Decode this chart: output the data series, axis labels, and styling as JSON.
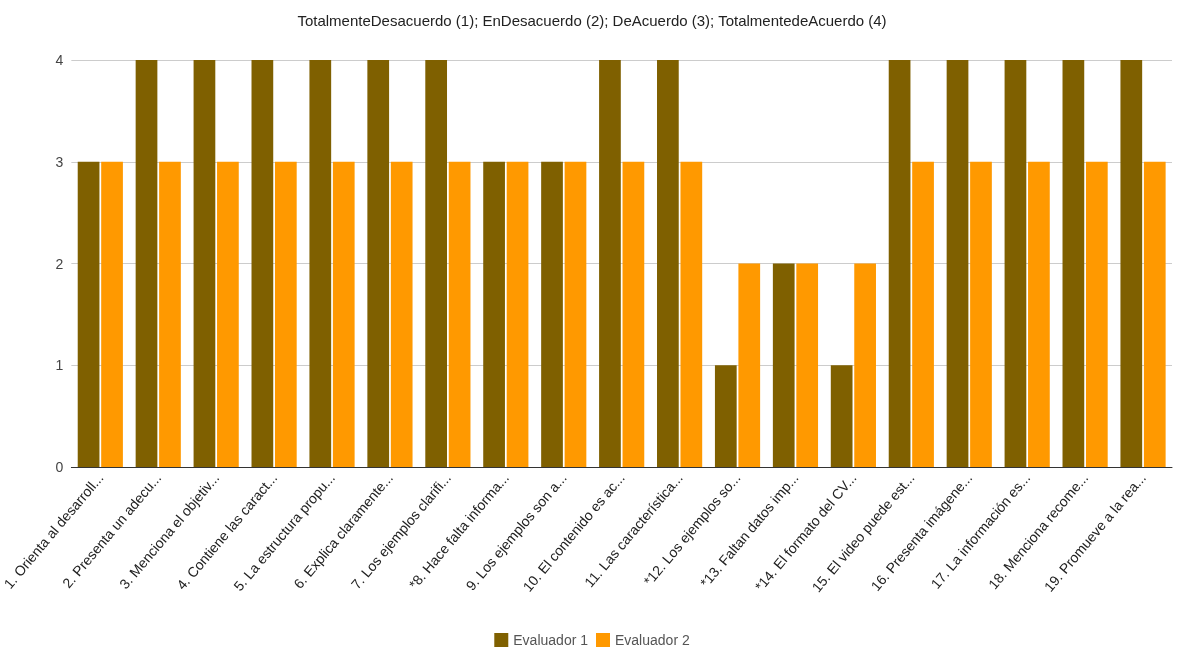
{
  "chart_data": {
    "type": "bar",
    "title": "TotalmenteDesacuerdo (1); EnDesacuerdo (2); DeAcuerdo (3); TotalmentedeAcuerdo (4)",
    "categories": [
      "1. Orienta al desarroll...",
      "2. Presenta un adecu...",
      "3. Menciona el objetiv...",
      "4. Contiene las caract...",
      "5. La estructura propu...",
      "6. Explica claramente...",
      "7. Los ejemplos clarifi...",
      "*8. Hace falta informa...",
      "9. Los ejemplos son a...",
      "10. El contenido es ac...",
      "11. Las característica...",
      "*12. Los ejemplos so...",
      "*13. Faltan datos imp...",
      "*14. El formato del CV...",
      "15. El video puede est...",
      "16. Presenta imágene...",
      "17. La información es...",
      "18. Menciona recome...",
      "19. Promueve a la rea..."
    ],
    "series": [
      {
        "name": "Evaluador 1",
        "color": "#7f6000",
        "values": [
          3,
          4,
          4,
          4,
          4,
          4,
          4,
          3,
          3,
          4,
          4,
          1,
          2,
          1,
          4,
          4,
          4,
          4,
          4
        ]
      },
      {
        "name": "Evaluador 2",
        "color": "#ff9900",
        "values": [
          3,
          3,
          3,
          3,
          3,
          3,
          3,
          3,
          3,
          3,
          3,
          2,
          2,
          2,
          3,
          3,
          3,
          3,
          3
        ]
      }
    ],
    "ylim": [
      0,
      4
    ],
    "yticks": [
      0,
      1,
      2,
      3,
      4
    ],
    "grid": "y",
    "legend": "bottom"
  }
}
